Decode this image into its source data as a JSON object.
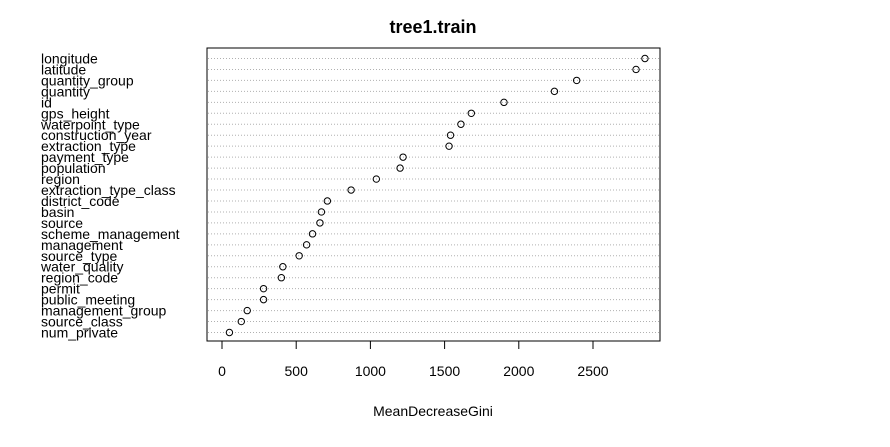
{
  "chart_data": {
    "type": "scatter",
    "title": "tree1.train",
    "xlabel": "MeanDecreaseGini",
    "ylabel": "",
    "xlim": [
      0,
      2900
    ],
    "xticks": [
      0,
      500,
      1000,
      1500,
      2000,
      2500
    ],
    "grid": "dotted horizontal guide per variable",
    "categories": [
      "longitude",
      "latitude",
      "quantity_group",
      "quantity",
      "id",
      "gps_height",
      "waterpoint_type",
      "construction_year",
      "extraction_type",
      "payment_type",
      "population",
      "region",
      "extraction_type_class",
      "district_code",
      "basin",
      "source",
      "scheme_management",
      "management",
      "source_type",
      "water_quality",
      "region_code",
      "permit",
      "public_meeting",
      "management_group",
      "source_class",
      "num_private"
    ],
    "values": [
      2850,
      2790,
      2390,
      2240,
      1900,
      1680,
      1610,
      1540,
      1530,
      1220,
      1200,
      1040,
      870,
      710,
      670,
      660,
      610,
      570,
      520,
      410,
      400,
      280,
      280,
      170,
      130,
      50
    ]
  }
}
